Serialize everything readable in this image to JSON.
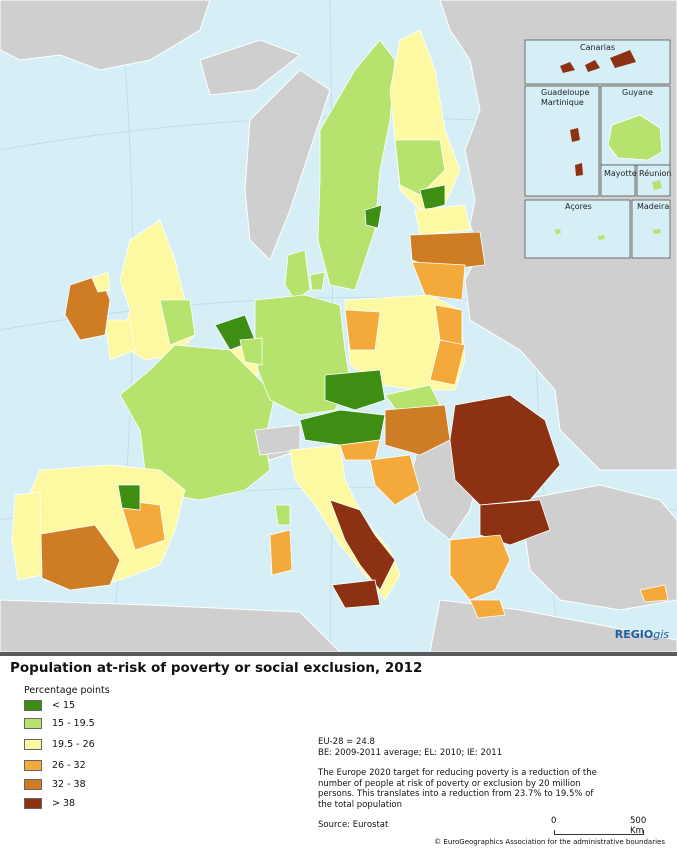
{
  "title": "Population at-risk of poverty or social exclusion, 2012",
  "legend": {
    "title": "Percentage points",
    "items": [
      {
        "label": "< 15",
        "color": "#3e8e13"
      },
      {
        "label": "15 - 19.5",
        "color": "#b5e36e"
      },
      {
        "label": "19.5 - 26",
        "color": "#fdf9a3"
      },
      {
        "label": "26 - 32",
        "color": "#f4a93b"
      },
      {
        "label": "32 - 38",
        "color": "#cf7d24"
      },
      {
        "label": "> 38",
        "color": "#8c3111"
      }
    ]
  },
  "notes": {
    "eu28": "EU-28 = 24.8",
    "years": "BE: 2009-2011 average; EL: 2010; IE: 2011",
    "target": "The Europe 2020 target for reducing poverty is a reduction of the number of people at risk of poverty or exclusion by 20 million persons. This translates into a reduction from 23.7% to 19.5% of the total population",
    "source": "Source: Eurostat"
  },
  "scale": {
    "start": "0",
    "end": "500 Km"
  },
  "copyright": "© EuroGeographics Association for the administrative boundaries",
  "brand": {
    "main": "REGIO",
    "suffix": "gis"
  },
  "insets": {
    "canarias": "Canarias",
    "guadeloupe": "Guadeloupe",
    "martinique": "Martinique",
    "guyane": "Guyane",
    "mayotte": "Mayotte",
    "reunion": "Réunion",
    "acores": "Açores",
    "madeira": "Madeira"
  },
  "colors": {
    "sea": "#d6eef6",
    "non_eu_land": "#cfcfcf",
    "border": "#ffffff",
    "title_rule": "#5a5a5a",
    "brand": "#1f5fa8"
  }
}
